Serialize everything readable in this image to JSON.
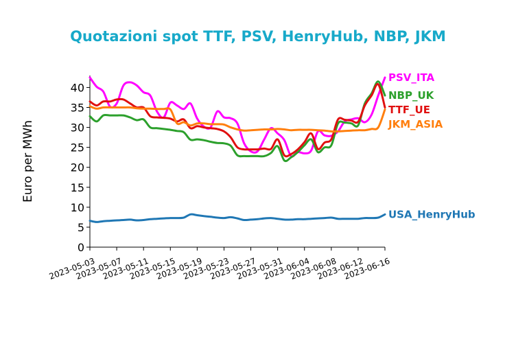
{
  "chart_data": {
    "type": "line",
    "title": "Quotazioni spot TTF, PSV, HenryHub, NBP, JKM",
    "ylabel": "Euro per MWh",
    "xlabel": "",
    "ylim": [
      0,
      43
    ],
    "yticks": [
      0,
      5,
      10,
      15,
      20,
      25,
      30,
      35,
      40
    ],
    "xlim": [
      "2023-05-03",
      "2023-06-16"
    ],
    "xticks": [
      "2023-05-03",
      "2023-05-07",
      "2023-05-11",
      "2023-05-15",
      "2023-05-19",
      "2023-05-23",
      "2023-05-27",
      "2023-05-31",
      "2023-06-04",
      "2023-06-08",
      "2023-06-12",
      "2023-06-16"
    ],
    "grid": false,
    "legend": "labels at line ends (right)",
    "title_color": "#17a9c9",
    "series": [
      {
        "name": "PSV_ITA",
        "color": "#ff00ff",
        "points": [
          [
            "2023-05-03",
            42.5
          ],
          [
            "2023-05-04",
            40.2
          ],
          [
            "2023-05-05",
            39.0
          ],
          [
            "2023-05-06",
            35.2
          ],
          [
            "2023-05-07",
            36.0
          ],
          [
            "2023-05-08",
            40.5
          ],
          [
            "2023-05-09",
            41.3
          ],
          [
            "2023-05-10",
            40.5
          ],
          [
            "2023-05-11",
            38.8
          ],
          [
            "2023-05-12",
            38.0
          ],
          [
            "2023-05-13",
            34.0
          ],
          [
            "2023-05-14",
            32.5
          ],
          [
            "2023-05-15",
            36.2
          ],
          [
            "2023-05-16",
            35.5
          ],
          [
            "2023-05-17",
            34.6
          ],
          [
            "2023-05-18",
            36.0
          ],
          [
            "2023-05-19",
            32.2
          ],
          [
            "2023-05-20",
            30.2
          ],
          [
            "2023-05-21",
            30.0
          ],
          [
            "2023-05-22",
            34.0
          ],
          [
            "2023-05-23",
            32.5
          ],
          [
            "2023-05-24",
            32.3
          ],
          [
            "2023-05-25",
            31.0
          ],
          [
            "2023-05-26",
            26.0
          ],
          [
            "2023-05-27",
            24.0
          ],
          [
            "2023-05-28",
            24.0
          ],
          [
            "2023-05-29",
            27.0
          ],
          [
            "2023-05-30",
            29.8
          ],
          [
            "2023-05-31",
            28.5
          ],
          [
            "2023-06-01",
            26.8
          ],
          [
            "2023-06-02",
            22.8
          ],
          [
            "2023-06-03",
            23.8
          ],
          [
            "2023-06-04",
            23.5
          ],
          [
            "2023-06-05",
            24.2
          ],
          [
            "2023-06-06",
            29.0
          ],
          [
            "2023-06-07",
            28.0
          ],
          [
            "2023-06-08",
            27.9
          ],
          [
            "2023-06-09",
            29.0
          ],
          [
            "2023-06-10",
            31.5
          ],
          [
            "2023-06-11",
            32.0
          ],
          [
            "2023-06-12",
            32.3
          ],
          [
            "2023-06-13",
            31.3
          ],
          [
            "2023-06-14",
            33.2
          ],
          [
            "2023-06-15",
            38.0
          ],
          [
            "2023-06-16",
            42.5
          ]
        ]
      },
      {
        "name": "NBP_UK",
        "color": "#2ca02c",
        "points": [
          [
            "2023-05-03",
            32.8
          ],
          [
            "2023-05-04",
            31.5
          ],
          [
            "2023-05-05",
            33.0
          ],
          [
            "2023-05-06",
            33.0
          ],
          [
            "2023-05-07",
            33.0
          ],
          [
            "2023-05-08",
            33.0
          ],
          [
            "2023-05-09",
            32.5
          ],
          [
            "2023-05-10",
            31.8
          ],
          [
            "2023-05-11",
            32.0
          ],
          [
            "2023-05-12",
            30.0
          ],
          [
            "2023-05-13",
            29.8
          ],
          [
            "2023-05-14",
            29.6
          ],
          [
            "2023-05-15",
            29.4
          ],
          [
            "2023-05-16",
            29.1
          ],
          [
            "2023-05-17",
            28.8
          ],
          [
            "2023-05-18",
            26.9
          ],
          [
            "2023-05-19",
            27.0
          ],
          [
            "2023-05-20",
            26.8
          ],
          [
            "2023-05-21",
            26.4
          ],
          [
            "2023-05-22",
            26.1
          ],
          [
            "2023-05-23",
            26.0
          ],
          [
            "2023-05-24",
            25.4
          ],
          [
            "2023-05-25",
            23.0
          ],
          [
            "2023-05-26",
            22.8
          ],
          [
            "2023-05-27",
            22.8
          ],
          [
            "2023-05-28",
            22.8
          ],
          [
            "2023-05-29",
            22.8
          ],
          [
            "2023-05-30",
            23.6
          ],
          [
            "2023-05-31",
            25.3
          ],
          [
            "2023-06-01",
            21.7
          ],
          [
            "2023-06-02",
            22.5
          ],
          [
            "2023-06-03",
            23.8
          ],
          [
            "2023-06-04",
            25.5
          ],
          [
            "2023-06-05",
            27.0
          ],
          [
            "2023-06-06",
            23.8
          ],
          [
            "2023-06-07",
            25.0
          ],
          [
            "2023-06-08",
            25.5
          ],
          [
            "2023-06-09",
            31.0
          ],
          [
            "2023-06-10",
            31.2
          ],
          [
            "2023-06-11",
            31.0
          ],
          [
            "2023-06-12",
            30.5
          ],
          [
            "2023-06-13",
            36.0
          ],
          [
            "2023-06-14",
            38.5
          ],
          [
            "2023-06-15",
            41.5
          ],
          [
            "2023-06-16",
            38.0
          ]
        ]
      },
      {
        "name": "TTF_UE",
        "color": "#e01010",
        "points": [
          [
            "2023-05-03",
            36.5
          ],
          [
            "2023-05-04",
            35.5
          ],
          [
            "2023-05-05",
            36.5
          ],
          [
            "2023-05-06",
            36.5
          ],
          [
            "2023-05-07",
            37.0
          ],
          [
            "2023-05-08",
            37.0
          ],
          [
            "2023-05-09",
            36.0
          ],
          [
            "2023-05-10",
            35.0
          ],
          [
            "2023-05-11",
            35.0
          ],
          [
            "2023-05-12",
            32.8
          ],
          [
            "2023-05-13",
            32.5
          ],
          [
            "2023-05-14",
            32.4
          ],
          [
            "2023-05-15",
            32.2
          ],
          [
            "2023-05-16",
            31.5
          ],
          [
            "2023-05-17",
            32.0
          ],
          [
            "2023-05-18",
            29.8
          ],
          [
            "2023-05-19",
            30.3
          ],
          [
            "2023-05-20",
            30.0
          ],
          [
            "2023-05-21",
            29.8
          ],
          [
            "2023-05-22",
            29.6
          ],
          [
            "2023-05-23",
            29.0
          ],
          [
            "2023-05-24",
            27.5
          ],
          [
            "2023-05-25",
            25.0
          ],
          [
            "2023-05-26",
            24.5
          ],
          [
            "2023-05-27",
            24.5
          ],
          [
            "2023-05-28",
            24.5
          ],
          [
            "2023-05-29",
            24.7
          ],
          [
            "2023-05-30",
            24.6
          ],
          [
            "2023-05-31",
            27.0
          ],
          [
            "2023-06-01",
            23.0
          ],
          [
            "2023-06-02",
            23.3
          ],
          [
            "2023-06-03",
            24.5
          ],
          [
            "2023-06-04",
            26.3
          ],
          [
            "2023-06-05",
            28.5
          ],
          [
            "2023-06-06",
            24.6
          ],
          [
            "2023-06-07",
            26.2
          ],
          [
            "2023-06-08",
            27.0
          ],
          [
            "2023-06-09",
            32.0
          ],
          [
            "2023-06-10",
            31.9
          ],
          [
            "2023-06-11",
            31.7
          ],
          [
            "2023-06-12",
            31.4
          ],
          [
            "2023-06-13",
            35.5
          ],
          [
            "2023-06-14",
            38.0
          ],
          [
            "2023-06-15",
            40.8
          ],
          [
            "2023-06-16",
            35.0
          ]
        ]
      },
      {
        "name": "JKM_ASIA",
        "color": "#ff7f0e",
        "points": [
          [
            "2023-05-03",
            35.3
          ],
          [
            "2023-05-04",
            34.7
          ],
          [
            "2023-05-05",
            35.0
          ],
          [
            "2023-05-06",
            35.0
          ],
          [
            "2023-05-07",
            35.0
          ],
          [
            "2023-05-08",
            35.0
          ],
          [
            "2023-05-09",
            35.0
          ],
          [
            "2023-05-10",
            34.8
          ],
          [
            "2023-05-11",
            34.7
          ],
          [
            "2023-05-12",
            34.7
          ],
          [
            "2023-05-13",
            34.6
          ],
          [
            "2023-05-14",
            34.6
          ],
          [
            "2023-05-15",
            34.5
          ],
          [
            "2023-05-16",
            31.0
          ],
          [
            "2023-05-17",
            31.3
          ],
          [
            "2023-05-18",
            30.5
          ],
          [
            "2023-05-19",
            31.0
          ],
          [
            "2023-05-20",
            31.0
          ],
          [
            "2023-05-21",
            30.8
          ],
          [
            "2023-05-22",
            30.8
          ],
          [
            "2023-05-23",
            30.7
          ],
          [
            "2023-05-24",
            30.0
          ],
          [
            "2023-05-25",
            29.5
          ],
          [
            "2023-05-26",
            29.2
          ],
          [
            "2023-05-27",
            29.3
          ],
          [
            "2023-05-28",
            29.4
          ],
          [
            "2023-05-29",
            29.5
          ],
          [
            "2023-05-30",
            29.5
          ],
          [
            "2023-05-31",
            29.6
          ],
          [
            "2023-06-01",
            29.5
          ],
          [
            "2023-06-02",
            29.3
          ],
          [
            "2023-06-03",
            29.4
          ],
          [
            "2023-06-04",
            29.4
          ],
          [
            "2023-06-05",
            29.4
          ],
          [
            "2023-06-06",
            29.3
          ],
          [
            "2023-06-07",
            29.2
          ],
          [
            "2023-06-08",
            29.0
          ],
          [
            "2023-06-09",
            29.0
          ],
          [
            "2023-06-10",
            29.1
          ],
          [
            "2023-06-11",
            29.2
          ],
          [
            "2023-06-12",
            29.3
          ],
          [
            "2023-06-13",
            29.3
          ],
          [
            "2023-06-14",
            29.6
          ],
          [
            "2023-06-15",
            30.0
          ],
          [
            "2023-06-16",
            34.5
          ]
        ]
      },
      {
        "name": "USA_HenryHub",
        "color": "#1f77b4",
        "points": [
          [
            "2023-05-03",
            6.6
          ],
          [
            "2023-05-04",
            6.3
          ],
          [
            "2023-05-05",
            6.5
          ],
          [
            "2023-05-06",
            6.6
          ],
          [
            "2023-05-07",
            6.7
          ],
          [
            "2023-05-08",
            6.8
          ],
          [
            "2023-05-09",
            6.9
          ],
          [
            "2023-05-10",
            6.7
          ],
          [
            "2023-05-11",
            6.8
          ],
          [
            "2023-05-12",
            7.0
          ],
          [
            "2023-05-13",
            7.1
          ],
          [
            "2023-05-14",
            7.2
          ],
          [
            "2023-05-15",
            7.3
          ],
          [
            "2023-05-16",
            7.3
          ],
          [
            "2023-05-17",
            7.4
          ],
          [
            "2023-05-18",
            8.2
          ],
          [
            "2023-05-19",
            8.0
          ],
          [
            "2023-05-20",
            7.8
          ],
          [
            "2023-05-21",
            7.6
          ],
          [
            "2023-05-22",
            7.4
          ],
          [
            "2023-05-23",
            7.3
          ],
          [
            "2023-05-24",
            7.5
          ],
          [
            "2023-05-25",
            7.2
          ],
          [
            "2023-05-26",
            6.8
          ],
          [
            "2023-05-27",
            6.9
          ],
          [
            "2023-05-28",
            7.0
          ],
          [
            "2023-05-29",
            7.2
          ],
          [
            "2023-05-30",
            7.3
          ],
          [
            "2023-05-31",
            7.1
          ],
          [
            "2023-06-01",
            6.9
          ],
          [
            "2023-06-02",
            6.9
          ],
          [
            "2023-06-03",
            7.0
          ],
          [
            "2023-06-04",
            7.0
          ],
          [
            "2023-06-05",
            7.1
          ],
          [
            "2023-06-06",
            7.2
          ],
          [
            "2023-06-07",
            7.3
          ],
          [
            "2023-06-08",
            7.4
          ],
          [
            "2023-06-09",
            7.1
          ],
          [
            "2023-06-10",
            7.1
          ],
          [
            "2023-06-11",
            7.1
          ],
          [
            "2023-06-12",
            7.1
          ],
          [
            "2023-06-13",
            7.3
          ],
          [
            "2023-06-14",
            7.3
          ],
          [
            "2023-06-15",
            7.4
          ],
          [
            "2023-06-16",
            8.2
          ]
        ]
      }
    ]
  }
}
